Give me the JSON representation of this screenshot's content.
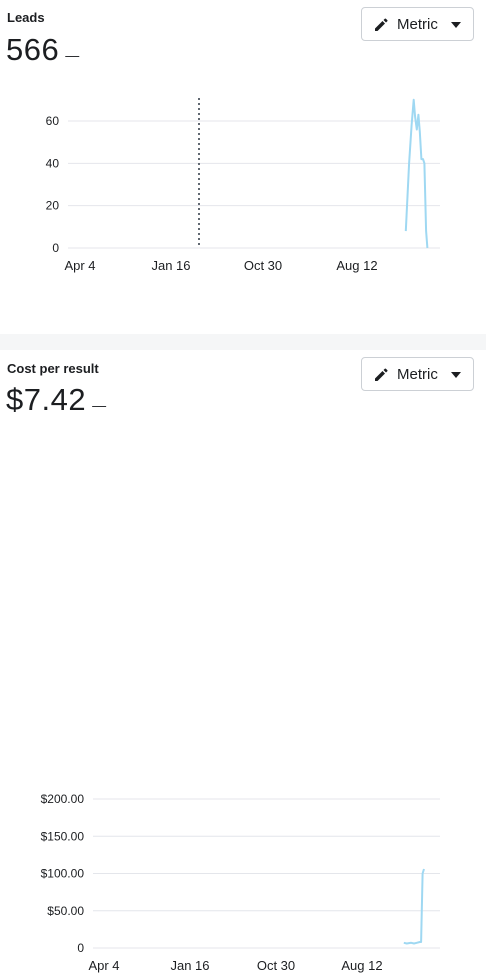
{
  "cards": [
    {
      "title": "Leads",
      "value": "566",
      "trend": "—",
      "metric_button": {
        "label": "Metric",
        "icon": "pencil-icon",
        "caret": "caret-down-icon"
      }
    },
    {
      "title": "Cost per result",
      "value": "$7.42",
      "trend": "—",
      "metric_button": {
        "label": "Metric",
        "icon": "pencil-icon",
        "caret": "caret-down-icon"
      }
    }
  ],
  "colors": {
    "line": "#9fd8f2",
    "grid": "#e4e6eb",
    "axis_text": "#1c1e21",
    "marker": "#606770",
    "gap": "#f5f6f7"
  },
  "chart_data": [
    {
      "type": "line",
      "title": "Leads",
      "x_tick_labels": [
        "Apr 4",
        "Jan 16",
        "Oct 30",
        "Aug 12"
      ],
      "y_tick_labels": [
        "0",
        "20",
        "40",
        "60"
      ],
      "ylim": [
        0,
        70
      ],
      "grid": true,
      "vertical_marker": "dotted line between Jan 16 and Oct 30",
      "series": [
        {
          "points": [
            [
              1.453,
              8
            ],
            [
              1.467,
              40
            ],
            [
              1.478,
              58
            ],
            [
              1.487,
              70
            ],
            [
              1.493,
              62
            ],
            [
              1.5,
              56
            ],
            [
              1.507,
              63
            ],
            [
              1.513,
              55
            ],
            [
              1.52,
              42
            ],
            [
              1.527,
              42
            ],
            [
              1.533,
              40
            ],
            [
              1.54,
              8
            ],
            [
              1.546,
              0
            ]
          ]
        }
      ]
    },
    {
      "type": "line",
      "title": "Cost per result",
      "x_tick_labels": [
        "Apr 4",
        "Jan 16",
        "Oct 30",
        "Aug 12"
      ],
      "y_tick_labels": [
        "0",
        "$50.00",
        "$100.00",
        "$150.00",
        "$200.00"
      ],
      "ylim": [
        0,
        200
      ],
      "grid": true,
      "series": [
        {
          "points": [
            [
              1.433,
              7
            ],
            [
              1.447,
              6
            ],
            [
              1.467,
              7
            ],
            [
              1.48,
              6
            ],
            [
              1.493,
              7
            ],
            [
              1.507,
              8
            ],
            [
              1.513,
              8
            ],
            [
              1.52,
              100
            ],
            [
              1.526,
              106
            ]
          ]
        }
      ]
    }
  ]
}
